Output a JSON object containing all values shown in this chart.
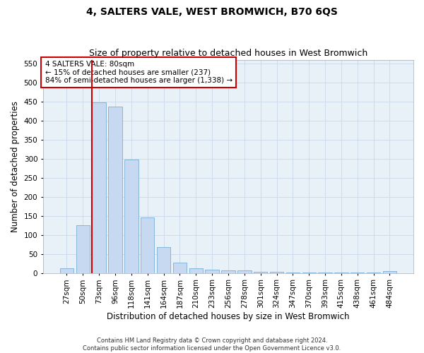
{
  "title": "4, SALTERS VALE, WEST BROMWICH, B70 6QS",
  "subtitle": "Size of property relative to detached houses in West Bromwich",
  "xlabel": "Distribution of detached houses by size in West Bromwich",
  "ylabel": "Number of detached properties",
  "footer_line1": "Contains HM Land Registry data © Crown copyright and database right 2024.",
  "footer_line2": "Contains public sector information licensed under the Open Government Licence v3.0.",
  "categories": [
    "27sqm",
    "50sqm",
    "73sqm",
    "96sqm",
    "118sqm",
    "141sqm",
    "164sqm",
    "187sqm",
    "210sqm",
    "233sqm",
    "256sqm",
    "278sqm",
    "301sqm",
    "324sqm",
    "347sqm",
    "370sqm",
    "393sqm",
    "415sqm",
    "438sqm",
    "461sqm",
    "484sqm"
  ],
  "values": [
    12,
    125,
    448,
    437,
    297,
    145,
    68,
    27,
    13,
    9,
    7,
    6,
    4,
    3,
    2,
    2,
    1,
    1,
    1,
    1,
    5
  ],
  "bar_color": "#c6d9f0",
  "bar_edge_color": "#7bafd4",
  "vline_bin_index": 2,
  "vline_color": "#cc0000",
  "annotation_text": "4 SALTERS VALE: 80sqm\n← 15% of detached houses are smaller (237)\n84% of semi-detached houses are larger (1,338) →",
  "annotation_box_color": "#ffffff",
  "annotation_box_edge": "#cc0000",
  "ylim": [
    0,
    560
  ],
  "yticks": [
    0,
    50,
    100,
    150,
    200,
    250,
    300,
    350,
    400,
    450,
    500,
    550
  ],
  "grid_color": "#c8d8e8",
  "background_color": "#e8f0f8",
  "title_fontsize": 10,
  "subtitle_fontsize": 9,
  "axis_label_fontsize": 8.5,
  "tick_fontsize": 7.5,
  "annotation_fontsize": 7.5,
  "footer_fontsize": 6.0
}
